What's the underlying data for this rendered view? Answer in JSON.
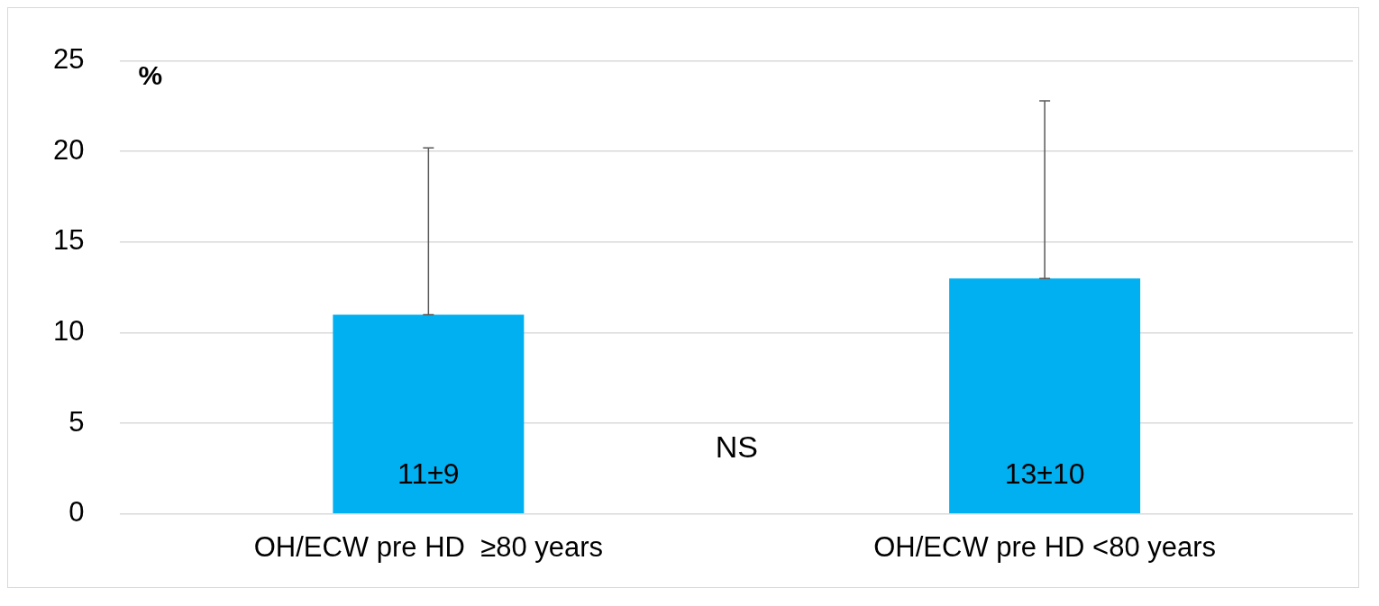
{
  "chart_data": {
    "type": "bar",
    "ylabel": "%",
    "categories": [
      "OH/ECW pre HD  ≥80 years",
      "OH/ECW pre HD <80 years"
    ],
    "values": [
      11,
      13
    ],
    "color": "#00b0f0",
    "errors": [
      [
        11,
        20.2
      ],
      [
        13,
        22.8
      ]
    ],
    "value_labels": [
      "11±9",
      "13±10"
    ],
    "annotations": [
      "NS"
    ],
    "ylim": [
      0,
      25
    ],
    "yticks": [
      0,
      5,
      10,
      15,
      20,
      25
    ],
    "grid": "y"
  }
}
